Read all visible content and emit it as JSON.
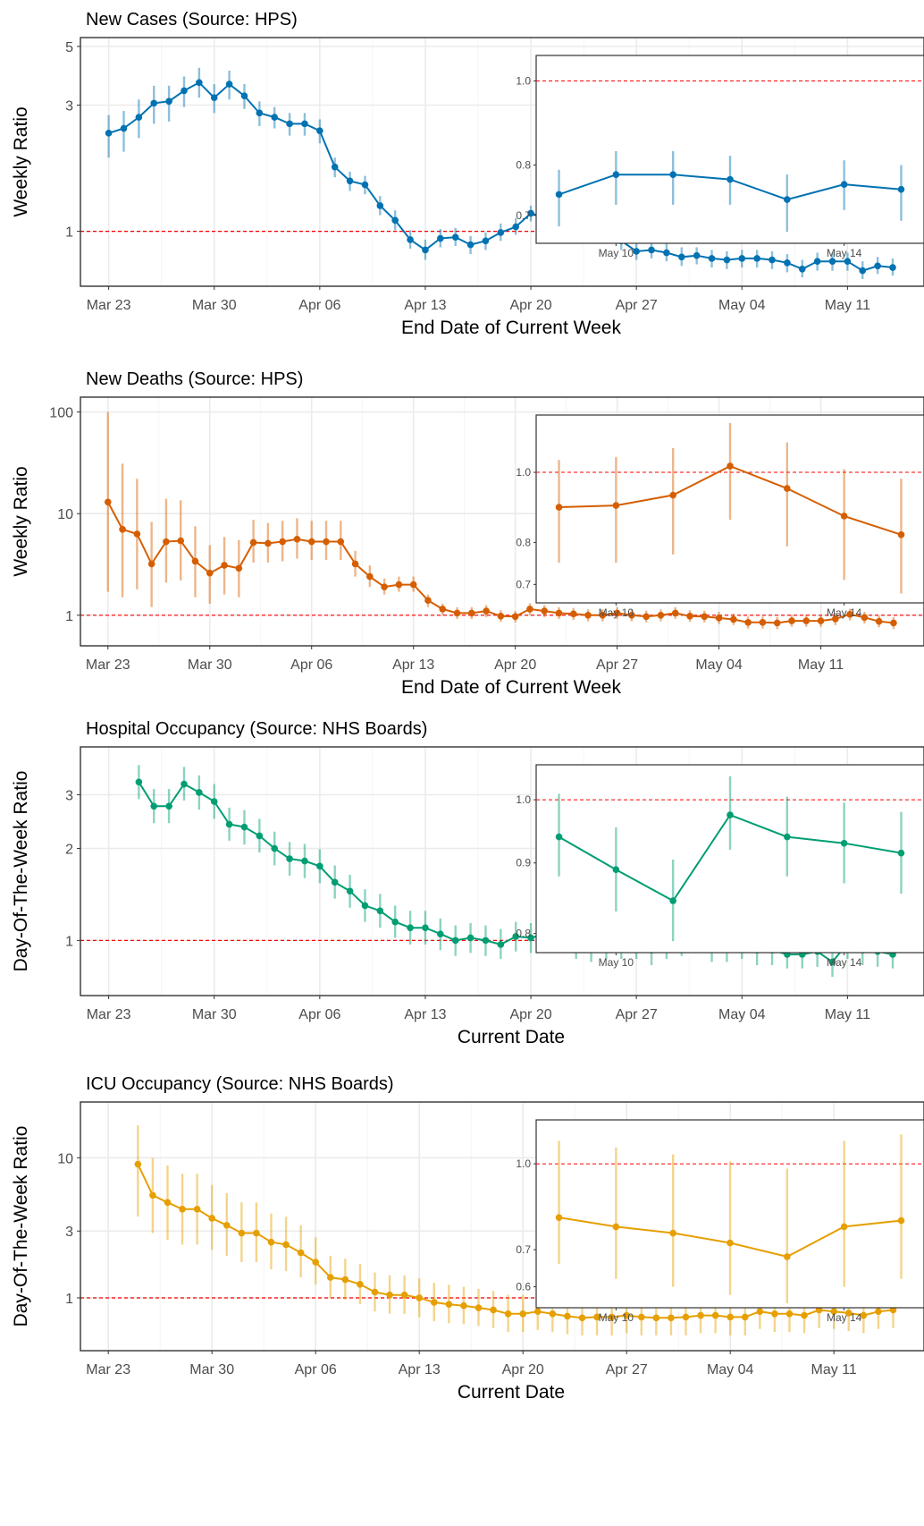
{
  "chart_data": [
    {
      "type": "line",
      "title": "New Cases (Source: HPS)",
      "xlabel": "End Date of Current Week",
      "ylabel": "Weekly Ratio",
      "color": "#0072B2",
      "x_tick_labels": [
        "Mar 23",
        "Mar 30",
        "Apr 06",
        "Apr 13",
        "Apr 20",
        "Apr 27",
        "May 04",
        "May 11"
      ],
      "y_scale": "log",
      "y_ticks": [
        1,
        3,
        5
      ],
      "ylim": [
        0.62,
        5.4
      ],
      "reference_line": 1,
      "x_start": "Mar 23",
      "series": [
        {
          "values": [
            2.35,
            2.45,
            2.7,
            3.05,
            3.1,
            3.4,
            3.65,
            3.2,
            3.6,
            3.25,
            2.8,
            2.7,
            2.55,
            2.55,
            2.4,
            1.75,
            1.55,
            1.5,
            1.25,
            1.1,
            0.93,
            0.85,
            0.94,
            0.95,
            0.89,
            0.92,
            0.99,
            1.04,
            1.17,
            1.12,
            1.08,
            1.1,
            1.1,
            1.02,
            0.92,
            0.84,
            0.85,
            0.83,
            0.8,
            0.81,
            0.79,
            0.78,
            0.79,
            0.79,
            0.78,
            0.76,
            0.72,
            0.77,
            0.77,
            0.77,
            0.71,
            0.74,
            0.73
          ],
          "lower": [
            1.9,
            2.0,
            2.25,
            2.55,
            2.6,
            2.95,
            3.2,
            2.8,
            3.15,
            2.9,
            2.5,
            2.45,
            2.3,
            2.3,
            2.15,
            1.6,
            1.42,
            1.38,
            1.15,
            1.01,
            0.86,
            0.78,
            0.87,
            0.88,
            0.82,
            0.85,
            0.92,
            0.97,
            1.09,
            1.04,
            1.0,
            1.02,
            1.02,
            0.95,
            0.85,
            0.78,
            0.79,
            0.77,
            0.74,
            0.75,
            0.73,
            0.72,
            0.73,
            0.73,
            0.72,
            0.7,
            0.67,
            0.71,
            0.71,
            0.71,
            0.66,
            0.69,
            0.68
          ],
          "upper": [
            2.75,
            2.85,
            3.15,
            3.55,
            3.55,
            3.85,
            4.15,
            3.6,
            4.05,
            3.6,
            3.1,
            2.95,
            2.8,
            2.8,
            2.65,
            1.9,
            1.68,
            1.62,
            1.36,
            1.2,
            1.01,
            0.93,
            1.02,
            1.03,
            0.96,
            0.99,
            1.07,
            1.12,
            1.25,
            1.21,
            1.17,
            1.19,
            1.19,
            1.1,
            0.99,
            0.91,
            0.92,
            0.9,
            0.87,
            0.87,
            0.85,
            0.84,
            0.85,
            0.85,
            0.84,
            0.82,
            0.78,
            0.83,
            0.83,
            0.83,
            0.77,
            0.8,
            0.79
          ]
        }
      ],
      "inset": {
        "x_tick_labels": [
          "May 10",
          "May 14"
        ],
        "y_scale": "log",
        "y_ticks": [
          0.7,
          0.8,
          1.0
        ],
        "ylim": [
          0.65,
          1.07
        ],
        "points": [
          0.74,
          0.78,
          0.78,
          0.77,
          0.73,
          0.76,
          0.75
        ],
        "lower": [
          0.68,
          0.72,
          0.72,
          0.72,
          0.67,
          0.71,
          0.69
        ],
        "upper": [
          0.79,
          0.83,
          0.83,
          0.82,
          0.78,
          0.81,
          0.8
        ]
      }
    },
    {
      "type": "line",
      "title": "New Deaths (Source: HPS)",
      "xlabel": "End Date of Current Week",
      "ylabel": "Weekly Ratio",
      "color": "#D55E00",
      "x_tick_labels": [
        "Mar 23",
        "Mar 30",
        "Apr 06",
        "Apr 13",
        "Apr 20",
        "Apr 27",
        "May 04",
        "May 11"
      ],
      "y_scale": "log",
      "y_ticks": [
        1,
        10,
        100
      ],
      "ylim": [
        0.5,
        140
      ],
      "reference_line": 1,
      "x_start": "Mar 23",
      "series": [
        {
          "values": [
            13,
            7,
            6.3,
            3.2,
            5.3,
            5.4,
            3.4,
            2.6,
            3.1,
            2.9,
            5.2,
            5.1,
            5.3,
            5.6,
            5.3,
            5.3,
            5.3,
            3.2,
            2.4,
            1.9,
            2.0,
            2.0,
            1.4,
            1.15,
            1.05,
            1.05,
            1.1,
            0.98,
            0.97,
            1.15,
            1.1,
            1.05,
            1.03,
            1.0,
            1.0,
            1.05,
            1.0,
            0.97,
            1.0,
            1.05,
            0.98,
            0.97,
            0.94,
            0.91,
            0.85,
            0.85,
            0.84,
            0.88,
            0.88,
            0.88,
            0.92,
            1.02,
            0.95,
            0.87,
            0.84
          ],
          "lower": [
            1.7,
            1.5,
            1.8,
            1.2,
            2.1,
            2.2,
            1.5,
            1.3,
            1.6,
            1.5,
            3.3,
            3.3,
            3.4,
            3.6,
            3.5,
            3.5,
            3.5,
            2.4,
            1.9,
            1.6,
            1.7,
            1.7,
            1.2,
            1.0,
            0.92,
            0.92,
            0.96,
            0.86,
            0.85,
            1.0,
            0.96,
            0.92,
            0.9,
            0.87,
            0.87,
            0.92,
            0.87,
            0.85,
            0.87,
            0.92,
            0.86,
            0.85,
            0.82,
            0.8,
            0.74,
            0.74,
            0.73,
            0.77,
            0.77,
            0.77,
            0.8,
            0.89,
            0.83,
            0.76,
            0.73
          ],
          "upper": [
            100,
            31,
            22,
            8.3,
            14,
            13.5,
            7.5,
            4.9,
            5.9,
            5.5,
            8.7,
            8.1,
            8.5,
            9.0,
            8.5,
            8.5,
            8.5,
            4.3,
            3.1,
            2.3,
            2.4,
            2.4,
            1.6,
            1.3,
            1.2,
            1.2,
            1.26,
            1.12,
            1.1,
            1.31,
            1.26,
            1.2,
            1.18,
            1.14,
            1.14,
            1.2,
            1.14,
            1.11,
            1.14,
            1.2,
            1.12,
            1.11,
            1.08,
            1.04,
            0.97,
            0.97,
            0.96,
            1.0,
            1.0,
            1.0,
            1.05,
            1.16,
            1.08,
            0.99,
            0.96
          ]
        }
      ],
      "inset": {
        "x_tick_labels": [
          "May 10",
          "May 14"
        ],
        "y_scale": "log",
        "y_ticks": [
          0.7,
          0.8,
          1.0
        ],
        "ylim": [
          0.66,
          1.2
        ],
        "points": [
          0.895,
          0.9,
          0.93,
          1.02,
          0.95,
          0.87,
          0.82
        ],
        "lower": [
          0.75,
          0.75,
          0.77,
          0.86,
          0.79,
          0.71,
          0.68
        ],
        "upper": [
          1.04,
          1.05,
          1.08,
          1.17,
          1.1,
          1.01,
          0.98
        ]
      }
    },
    {
      "type": "line",
      "title": "Hospital Occupancy (Source: NHS Boards)",
      "xlabel": "Current Date",
      "ylabel": "Day-Of-The-Week Ratio",
      "color": "#009E73",
      "x_tick_labels": [
        "Mar 23",
        "Mar 30",
        "Apr 06",
        "Apr 13",
        "Apr 20",
        "Apr 27",
        "May 04",
        "May 11"
      ],
      "y_scale": "log",
      "y_ticks": [
        1,
        2,
        3
      ],
      "ylim": [
        0.66,
        4.3
      ],
      "reference_line": 1,
      "x_start": "Mar 25",
      "series": [
        {
          "values": [
            3.3,
            2.75,
            2.75,
            3.25,
            3.05,
            2.85,
            2.4,
            2.35,
            2.2,
            2.0,
            1.85,
            1.82,
            1.75,
            1.55,
            1.45,
            1.3,
            1.25,
            1.15,
            1.1,
            1.1,
            1.05,
            1.0,
            1.02,
            1.0,
            0.97,
            1.03,
            1.02,
            1.05,
            1.03,
            0.98,
            0.95,
            0.97,
            0.97,
            0.97,
            0.93,
            0.98,
            1.0,
            1.03,
            0.95,
            0.95,
            0.97,
            0.93,
            0.93,
            0.9,
            0.9,
            0.92,
            0.85,
            0.98,
            0.93,
            0.92,
            0.9
          ],
          "lower": [
            2.9,
            2.42,
            2.42,
            2.87,
            2.68,
            2.5,
            2.12,
            2.06,
            1.94,
            1.76,
            1.63,
            1.6,
            1.54,
            1.37,
            1.28,
            1.15,
            1.1,
            1.02,
            0.97,
            0.97,
            0.93,
            0.89,
            0.91,
            0.89,
            0.87,
            0.92,
            0.91,
            0.93,
            0.92,
            0.87,
            0.85,
            0.87,
            0.87,
            0.87,
            0.83,
            0.87,
            0.89,
            0.92,
            0.85,
            0.85,
            0.87,
            0.83,
            0.83,
            0.81,
            0.81,
            0.82,
            0.76,
            0.87,
            0.83,
            0.82,
            0.81
          ],
          "upper": [
            3.75,
            3.13,
            3.13,
            3.7,
            3.47,
            3.25,
            2.72,
            2.67,
            2.5,
            2.27,
            2.1,
            2.07,
            1.99,
            1.76,
            1.64,
            1.47,
            1.42,
            1.3,
            1.25,
            1.25,
            1.18,
            1.12,
            1.14,
            1.12,
            1.09,
            1.15,
            1.14,
            1.18,
            1.15,
            1.1,
            1.06,
            1.09,
            1.09,
            1.09,
            1.04,
            1.1,
            1.12,
            1.15,
            1.06,
            1.06,
            1.09,
            1.04,
            1.04,
            1.0,
            1.0,
            1.03,
            0.95,
            1.1,
            1.04,
            1.03,
            1.0
          ]
        }
      ],
      "inset": {
        "x_tick_labels": [
          "May 10",
          "May 14"
        ],
        "y_scale": "log",
        "y_ticks": [
          0.8,
          0.9,
          1.0
        ],
        "ylim": [
          0.775,
          1.06
        ],
        "points": [
          0.94,
          0.89,
          0.845,
          0.975,
          0.94,
          0.93,
          0.915
        ],
        "lower": [
          0.88,
          0.83,
          0.79,
          0.92,
          0.88,
          0.87,
          0.855
        ],
        "upper": [
          1.01,
          0.955,
          0.905,
          1.04,
          1.005,
          0.995,
          0.98
        ]
      }
    },
    {
      "type": "line",
      "title": "ICU Occupancy (Source: NHS Boards)",
      "xlabel": "Current Date",
      "ylabel": "Day-Of-The-Week Ratio",
      "color": "#E69F00",
      "x_tick_labels": [
        "Mar 23",
        "Mar 30",
        "Apr 06",
        "Apr 13",
        "Apr 20",
        "Apr 27",
        "May 04",
        "May 11"
      ],
      "y_scale": "log",
      "y_ticks": [
        1,
        3,
        10
      ],
      "ylim": [
        0.42,
        25
      ],
      "reference_line": 1,
      "x_start": "Mar 25",
      "series": [
        {
          "values": [
            9.0,
            5.4,
            4.8,
            4.3,
            4.3,
            3.7,
            3.3,
            2.9,
            2.9,
            2.5,
            2.4,
            2.1,
            1.8,
            1.4,
            1.35,
            1.25,
            1.1,
            1.05,
            1.05,
            1.0,
            0.93,
            0.9,
            0.88,
            0.85,
            0.82,
            0.77,
            0.77,
            0.8,
            0.77,
            0.74,
            0.72,
            0.73,
            0.73,
            0.75,
            0.73,
            0.72,
            0.72,
            0.73,
            0.75,
            0.75,
            0.73,
            0.73,
            0.8,
            0.77,
            0.77,
            0.75,
            0.82,
            0.8,
            0.78,
            0.75,
            0.8,
            0.82
          ],
          "lower": [
            3.8,
            2.9,
            2.6,
            2.4,
            2.4,
            2.2,
            2.0,
            1.8,
            1.8,
            1.6,
            1.55,
            1.4,
            1.25,
            1.0,
            0.97,
            0.9,
            0.8,
            0.77,
            0.77,
            0.73,
            0.68,
            0.66,
            0.65,
            0.63,
            0.61,
            0.57,
            0.57,
            0.59,
            0.57,
            0.55,
            0.54,
            0.54,
            0.54,
            0.56,
            0.54,
            0.54,
            0.54,
            0.54,
            0.56,
            0.56,
            0.54,
            0.54,
            0.6,
            0.57,
            0.57,
            0.56,
            0.61,
            0.6,
            0.58,
            0.56,
            0.6,
            0.61
          ],
          "upper": [
            17,
            10,
            8.8,
            7.7,
            7.7,
            6.4,
            5.6,
            4.8,
            4.8,
            4.0,
            3.8,
            3.3,
            2.7,
            2.0,
            1.9,
            1.75,
            1.52,
            1.45,
            1.45,
            1.38,
            1.28,
            1.24,
            1.2,
            1.16,
            1.12,
            1.05,
            1.05,
            1.09,
            1.05,
            1.01,
            0.98,
            0.99,
            0.99,
            1.02,
            0.99,
            0.98,
            0.98,
            0.99,
            1.02,
            1.02,
            0.99,
            0.99,
            1.09,
            1.05,
            1.05,
            1.02,
            1.12,
            1.09,
            1.06,
            1.02,
            1.09,
            1.12
          ]
        }
      ],
      "inset": {
        "x_tick_labels": [
          "May 10",
          "May 14"
        ],
        "y_scale": "log",
        "y_ticks": [
          0.6,
          0.7,
          1.0
        ],
        "ylim": [
          0.55,
          1.2
        ],
        "points": [
          0.8,
          0.77,
          0.75,
          0.72,
          0.68,
          0.77,
          0.79
        ],
        "lower": [
          0.66,
          0.62,
          0.6,
          0.58,
          0.56,
          0.6,
          0.62
        ],
        "upper": [
          1.1,
          1.07,
          1.04,
          1.01,
          0.98,
          1.1,
          1.13
        ]
      }
    }
  ]
}
